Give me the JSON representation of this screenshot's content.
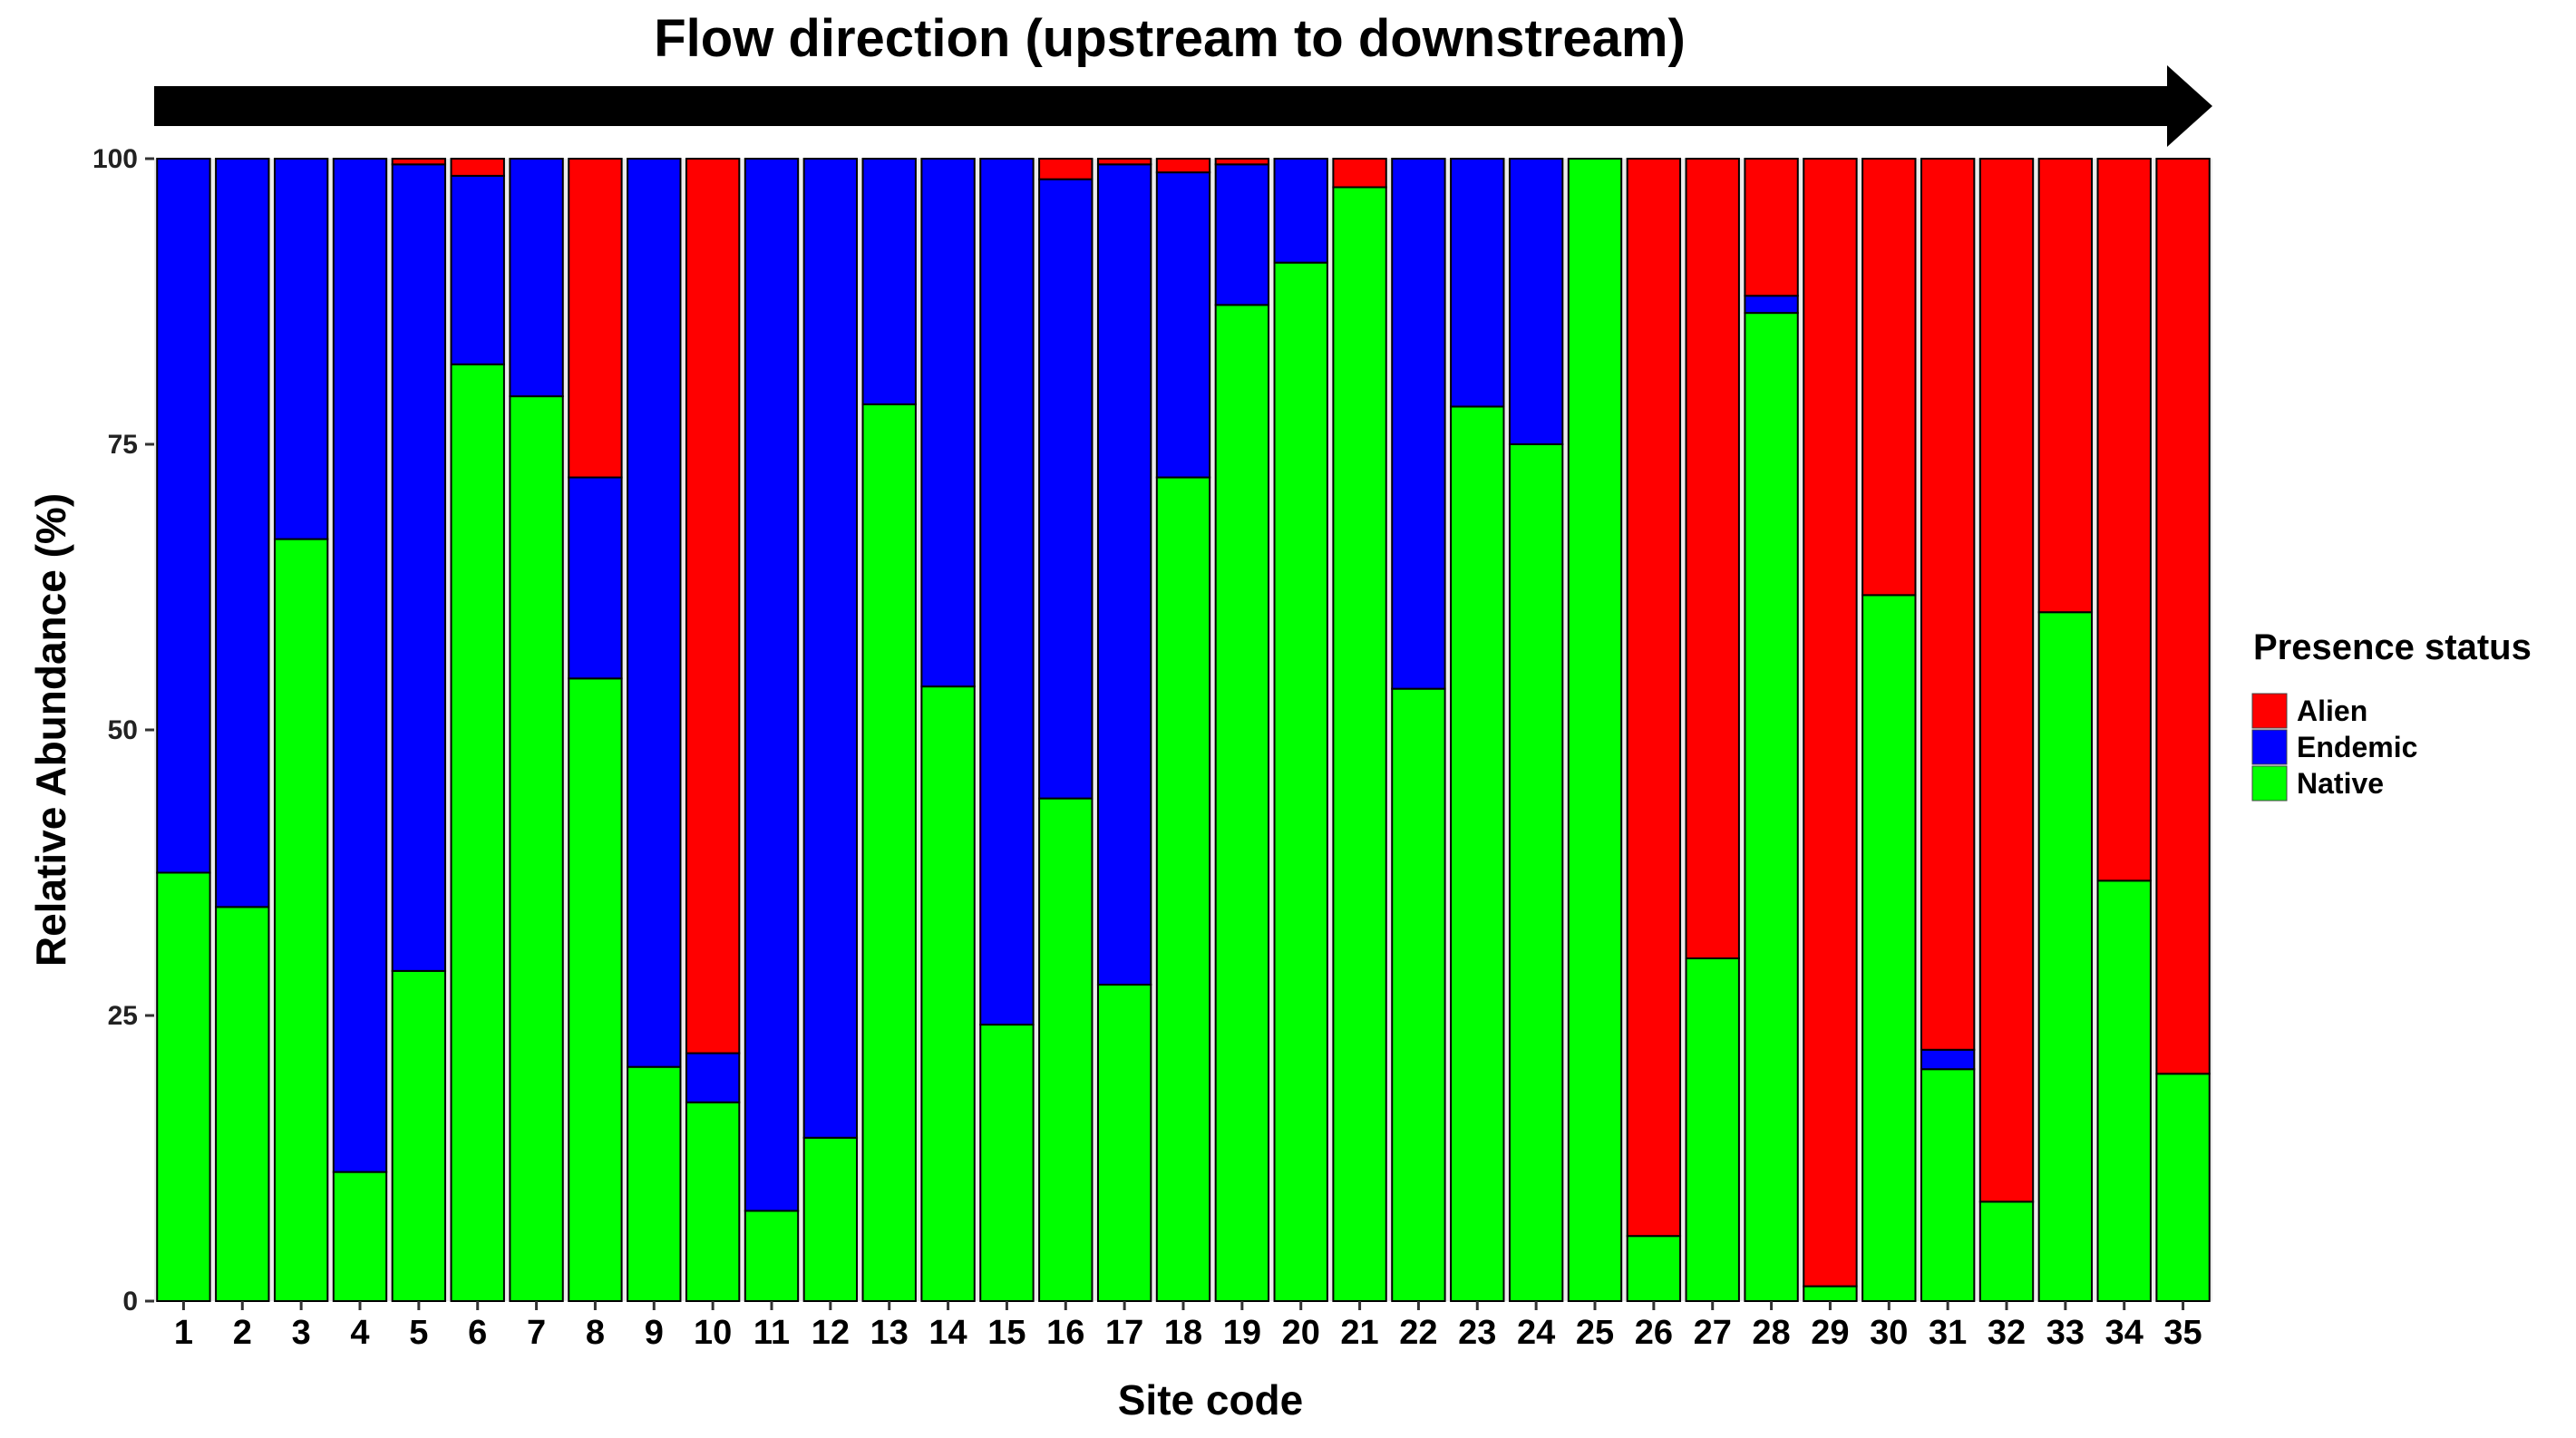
{
  "chart_data": {
    "type": "bar",
    "stacked": true,
    "title": "Flow direction (upstream to downstream)",
    "xlabel": "Site code",
    "ylabel": "Relative Abundance (%)",
    "ylim": [
      0,
      100
    ],
    "yticks": [
      "0",
      "25",
      "50",
      "75",
      "100"
    ],
    "grid": false,
    "legend": {
      "title": "Presence status",
      "position": "right"
    },
    "categories": [
      "1",
      "2",
      "3",
      "4",
      "5",
      "6",
      "7",
      "8",
      "9",
      "10",
      "11",
      "12",
      "13",
      "14",
      "15",
      "16",
      "17",
      "18",
      "19",
      "20",
      "21",
      "22",
      "23",
      "24",
      "25",
      "26",
      "27",
      "28",
      "29",
      "30",
      "31",
      "32",
      "33",
      "34",
      "35"
    ],
    "series": [
      {
        "name": "Native",
        "color": "#00ff00",
        "values": [
          37.5,
          34.5,
          66.7,
          11.3,
          28.9,
          82.0,
          79.2,
          54.5,
          20.5,
          17.4,
          7.9,
          14.3,
          78.5,
          53.8,
          24.2,
          44.0,
          27.7,
          72.1,
          87.2,
          90.9,
          97.5,
          53.6,
          78.3,
          75.0,
          100,
          5.7,
          30.0,
          86.5,
          1.3,
          61.8,
          20.3,
          8.7,
          60.3,
          36.8,
          19.9
        ]
      },
      {
        "name": "Endemic",
        "color": "#0000ff",
        "values": [
          62.5,
          65.5,
          33.3,
          88.7,
          70.6,
          16.5,
          20.8,
          17.6,
          79.5,
          4.3,
          92.1,
          85.7,
          21.5,
          46.2,
          75.8,
          54.2,
          71.8,
          26.7,
          12.3,
          9.1,
          0,
          46.4,
          21.7,
          25.0,
          0,
          0,
          0,
          1.5,
          0,
          0,
          1.7,
          0,
          0,
          0,
          0
        ]
      },
      {
        "name": "Alien",
        "color": "#ff0000",
        "values": [
          0,
          0,
          0,
          0,
          0.5,
          1.5,
          0,
          27.9,
          0,
          78.3,
          0,
          0,
          0,
          0,
          0,
          1.8,
          0.5,
          1.2,
          0.5,
          0,
          2.5,
          0,
          0,
          0,
          0,
          94.3,
          70.0,
          12.0,
          98.7,
          38.2,
          78.0,
          91.3,
          39.7,
          63.2,
          80.1
        ]
      }
    ]
  }
}
